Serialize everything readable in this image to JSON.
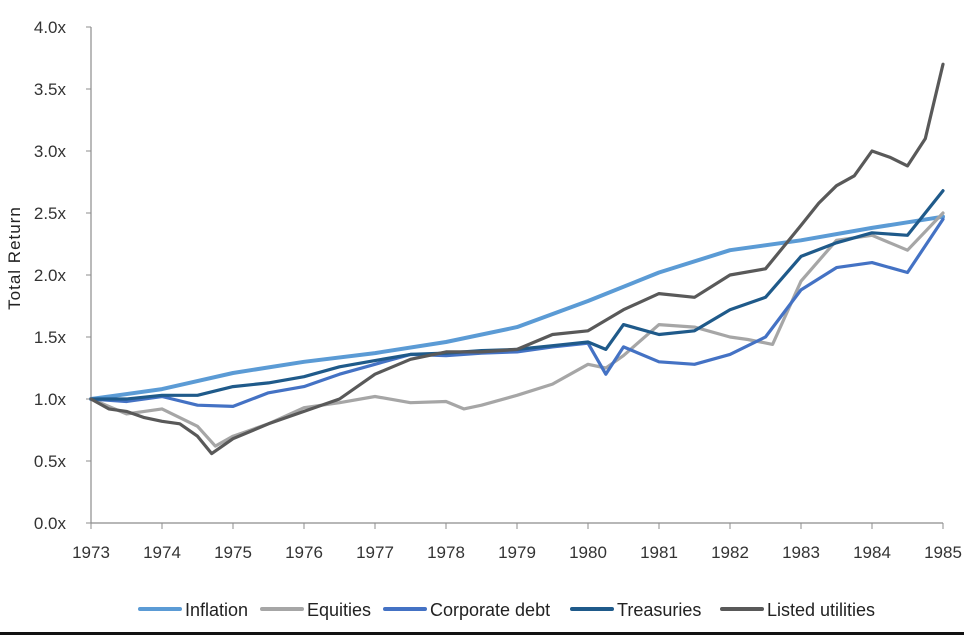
{
  "chart_data": {
    "type": "line",
    "title": "",
    "xlabel": "",
    "ylabel": "Total Return",
    "xlim": [
      1973,
      1985
    ],
    "ylim": [
      0,
      4
    ],
    "x_ticks": [
      "1973",
      "1974",
      "1975",
      "1976",
      "1977",
      "1978",
      "1979",
      "1980",
      "1981",
      "1982",
      "1983",
      "1984",
      "1985"
    ],
    "y_ticks": [
      "0.0x",
      "0.5x",
      "1.0x",
      "1.5x",
      "2.0x",
      "2.5x",
      "3.0x",
      "3.5x",
      "4.0x"
    ],
    "grid": false,
    "legend_position": "bottom",
    "series": [
      {
        "name": "Inflation",
        "color": "#5b9bd5",
        "x": [
          1973,
          1974,
          1975,
          1976,
          1977,
          1978,
          1979,
          1980,
          1981,
          1982,
          1983,
          1984,
          1985
        ],
        "y": [
          1.0,
          1.08,
          1.21,
          1.3,
          1.37,
          1.46,
          1.58,
          1.79,
          2.02,
          2.2,
          2.28,
          2.38,
          2.47
        ]
      },
      {
        "name": "Equities",
        "color": "#a6a6a6",
        "x": [
          1973,
          1973.5,
          1974,
          1974.5,
          1974.75,
          1975,
          1975.5,
          1976,
          1976.5,
          1977,
          1977.5,
          1978,
          1978.25,
          1978.5,
          1979,
          1979.5,
          1980,
          1980.25,
          1980.5,
          1981,
          1981.5,
          1982,
          1982.25,
          1982.6,
          1983,
          1983.5,
          1984,
          1984.5,
          1985
        ],
        "y": [
          1.0,
          0.88,
          0.92,
          0.78,
          0.62,
          0.7,
          0.8,
          0.93,
          0.97,
          1.02,
          0.97,
          0.98,
          0.92,
          0.95,
          1.03,
          1.12,
          1.28,
          1.25,
          1.35,
          1.6,
          1.58,
          1.5,
          1.48,
          1.44,
          1.95,
          2.28,
          2.32,
          2.2,
          2.5
        ]
      },
      {
        "name": "Corporate debt",
        "color": "#4472c4",
        "x": [
          1973,
          1973.5,
          1974,
          1974.5,
          1975,
          1975.5,
          1976,
          1976.5,
          1977,
          1977.5,
          1978,
          1978.5,
          1979,
          1979.5,
          1980,
          1980.25,
          1980.5,
          1981,
          1981.5,
          1982,
          1982.5,
          1983,
          1983.5,
          1984,
          1984.5,
          1985
        ],
        "y": [
          1.0,
          0.98,
          1.02,
          0.95,
          0.94,
          1.05,
          1.1,
          1.2,
          1.28,
          1.36,
          1.35,
          1.37,
          1.38,
          1.42,
          1.45,
          1.2,
          1.42,
          1.3,
          1.28,
          1.36,
          1.5,
          1.88,
          2.06,
          2.1,
          2.02,
          2.45
        ]
      },
      {
        "name": "Treasuries",
        "color": "#1f5a8a",
        "x": [
          1973,
          1973.5,
          1974,
          1974.5,
          1975,
          1975.5,
          1976,
          1976.5,
          1977,
          1977.5,
          1978,
          1978.5,
          1979,
          1979.5,
          1980,
          1980.25,
          1980.5,
          1981,
          1981.5,
          1982,
          1982.5,
          1983,
          1983.5,
          1984,
          1984.5,
          1985
        ],
        "y": [
          1.0,
          1.0,
          1.03,
          1.03,
          1.1,
          1.13,
          1.18,
          1.26,
          1.31,
          1.36,
          1.37,
          1.39,
          1.4,
          1.43,
          1.46,
          1.4,
          1.6,
          1.52,
          1.55,
          1.72,
          1.82,
          2.15,
          2.26,
          2.34,
          2.32,
          2.68
        ]
      },
      {
        "name": "Listed utilities",
        "color": "#595959",
        "x": [
          1973,
          1973.25,
          1973.5,
          1973.75,
          1974,
          1974.25,
          1974.5,
          1974.7,
          1975,
          1975.5,
          1976,
          1976.5,
          1977,
          1977.5,
          1978,
          1978.5,
          1979,
          1979.5,
          1980,
          1980.5,
          1981,
          1981.5,
          1982,
          1982.5,
          1983,
          1983.25,
          1983.5,
          1983.75,
          1984,
          1984.25,
          1984.5,
          1984.75,
          1985
        ],
        "y": [
          1.0,
          0.92,
          0.9,
          0.85,
          0.82,
          0.8,
          0.7,
          0.56,
          0.68,
          0.8,
          0.9,
          1.0,
          1.2,
          1.32,
          1.38,
          1.38,
          1.4,
          1.52,
          1.55,
          1.72,
          1.85,
          1.82,
          2.0,
          2.05,
          2.4,
          2.58,
          2.72,
          2.8,
          3.0,
          2.95,
          2.88,
          3.1,
          3.7
        ]
      }
    ]
  }
}
